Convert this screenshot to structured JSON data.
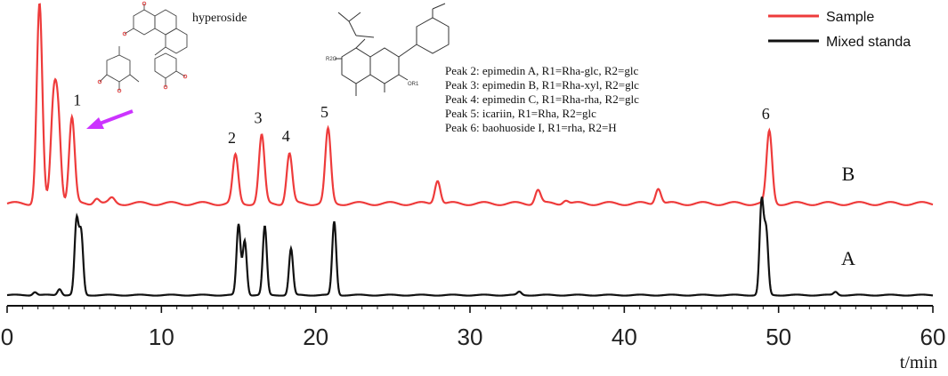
{
  "chart_data": {
    "type": "line",
    "xlabel": "t/min",
    "ylabel": "",
    "xlim": [
      0,
      60
    ],
    "x_ticks": [
      "0",
      "10",
      "20",
      "30",
      "40",
      "50",
      "60"
    ],
    "grid": false,
    "legend_position": "top-right",
    "series": [
      {
        "name": "Sample",
        "trace_label": "B",
        "color": "#ee3b3b",
        "peaks": [
          {
            "rt": 2.1,
            "height": 1.0
          },
          {
            "rt": 3.0,
            "height": 0.46
          },
          {
            "rt": 3.3,
            "height": 0.42
          },
          {
            "rt": 4.2,
            "height": 0.43,
            "label": "1"
          },
          {
            "rt": 5.8,
            "height": 0.03
          },
          {
            "rt": 6.8,
            "height": 0.025
          },
          {
            "rt": 14.8,
            "height": 0.24,
            "label": "2"
          },
          {
            "rt": 16.5,
            "height": 0.34,
            "label": "3"
          },
          {
            "rt": 18.3,
            "height": 0.25,
            "label": "4"
          },
          {
            "rt": 20.8,
            "height": 0.37,
            "label": "5"
          },
          {
            "rt": 27.9,
            "height": 0.12
          },
          {
            "rt": 34.4,
            "height": 0.07
          },
          {
            "rt": 36.2,
            "height": 0.02
          },
          {
            "rt": 42.2,
            "height": 0.08
          },
          {
            "rt": 49.4,
            "height": 0.36,
            "label": "6"
          }
        ]
      },
      {
        "name": "Mixed standa",
        "trace_label": "A",
        "color": "#111111",
        "peaks": [
          {
            "rt": 1.8,
            "height": 0.02
          },
          {
            "rt": 3.4,
            "height": 0.04
          },
          {
            "rt": 4.5,
            "height": 0.46
          },
          {
            "rt": 4.8,
            "height": 0.38
          },
          {
            "rt": 15.0,
            "height": 0.44
          },
          {
            "rt": 15.4,
            "height": 0.34
          },
          {
            "rt": 16.7,
            "height": 0.43
          },
          {
            "rt": 18.4,
            "height": 0.29
          },
          {
            "rt": 21.2,
            "height": 0.46
          },
          {
            "rt": 33.2,
            "height": 0.02
          },
          {
            "rt": 48.9,
            "height": 0.58
          },
          {
            "rt": 49.2,
            "height": 0.39
          },
          {
            "rt": 53.7,
            "height": 0.02
          }
        ]
      }
    ],
    "annotations": {
      "hyperoside_label": "hyperoside",
      "peak_list": [
        "Peak 2: epimedin A,   R1=Rha-glc, R2=glc",
        "Peak 3: epimedin B,   R1=Rha-xyl, R2=glc",
        "Peak 4: epimedin C,   R1=Rha-rha, R2=glc",
        "Peak 5: icariin,          R1=Rha, R2=glc",
        "Peak 6: baohuoside I, R1=rha, R2=H"
      ],
      "structure_labels": {
        "r2o": "R2O",
        "or1": "OR1"
      }
    }
  },
  "colors": {
    "arrow": "#cc33ff",
    "axis": "#111111"
  }
}
